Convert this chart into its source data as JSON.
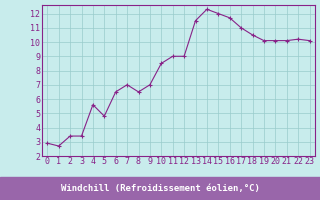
{
  "x": [
    0,
    1,
    2,
    3,
    4,
    5,
    6,
    7,
    8,
    9,
    10,
    11,
    12,
    13,
    14,
    15,
    16,
    17,
    18,
    19,
    20,
    21,
    22,
    23
  ],
  "y": [
    2.9,
    2.7,
    3.4,
    3.4,
    5.6,
    4.8,
    6.5,
    7.0,
    6.5,
    7.0,
    8.5,
    9.0,
    9.0,
    11.5,
    12.3,
    12.0,
    11.7,
    11.0,
    10.5,
    10.1,
    10.1,
    10.1,
    10.2,
    10.1
  ],
  "xlabel": "Windchill (Refroidissement éolien,°C)",
  "ylabel_ticks": [
    2,
    3,
    4,
    5,
    6,
    7,
    8,
    9,
    10,
    11,
    12
  ],
  "xlim": [
    -0.5,
    23.5
  ],
  "ylim": [
    2,
    12.6
  ],
  "line_color": "#882288",
  "bg_color": "#c8ecec",
  "grid_color": "#99cccc",
  "xlabel_bg": "#9966aa",
  "xlabel_color": "#ffffff",
  "xlabel_fontsize": 6.5,
  "tick_fontsize": 6.0,
  "spine_color": "#882288"
}
